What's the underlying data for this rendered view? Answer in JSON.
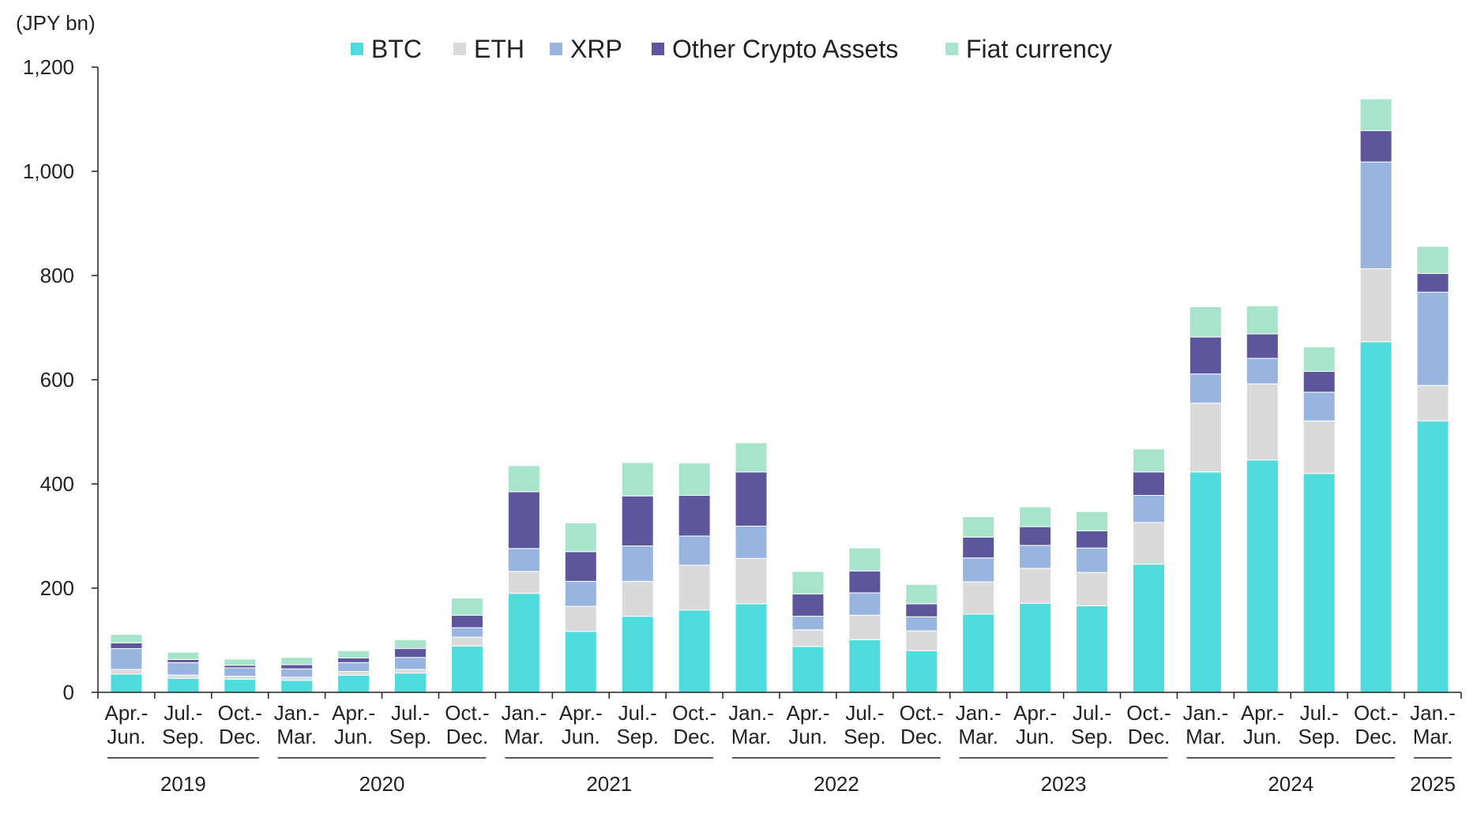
{
  "chart_data": {
    "type": "bar",
    "stacked": true,
    "unit_label": "(JPY bn)",
    "ylim": [
      0,
      1200
    ],
    "yticks": [
      0,
      200,
      400,
      600,
      800,
      1000,
      1200
    ],
    "ytick_labels": [
      "0",
      "200",
      "400",
      "600",
      "800",
      "1,000",
      "1,200"
    ],
    "legend_position": "top-center",
    "categories": [
      {
        "line1": "Apr.-",
        "line2": "Jun."
      },
      {
        "line1": "Jul.-",
        "line2": "Sep."
      },
      {
        "line1": "Oct.-",
        "line2": "Dec."
      },
      {
        "line1": "Jan.-",
        "line2": "Mar."
      },
      {
        "line1": "Apr.-",
        "line2": "Jun."
      },
      {
        "line1": "Jul.-",
        "line2": "Sep."
      },
      {
        "line1": "Oct.-",
        "line2": "Dec."
      },
      {
        "line1": "Jan.-",
        "line2": "Mar."
      },
      {
        "line1": "Apr.-",
        "line2": "Jun."
      },
      {
        "line1": "Jul.-",
        "line2": "Sep."
      },
      {
        "line1": "Oct.-",
        "line2": "Dec."
      },
      {
        "line1": "Jan.-",
        "line2": "Mar."
      },
      {
        "line1": "Apr.-",
        "line2": "Jun."
      },
      {
        "line1": "Jul.-",
        "line2": "Sep."
      },
      {
        "line1": "Oct.-",
        "line2": "Dec."
      },
      {
        "line1": "Jan.-",
        "line2": "Mar."
      },
      {
        "line1": "Apr.-",
        "line2": "Jun."
      },
      {
        "line1": "Jul.-",
        "line2": "Sep."
      },
      {
        "line1": "Oct.-",
        "line2": "Dec."
      },
      {
        "line1": "Jan.-",
        "line2": "Mar."
      },
      {
        "line1": "Apr.-",
        "line2": "Jun."
      },
      {
        "line1": "Jul.-",
        "line2": "Sep."
      },
      {
        "line1": "Oct.-",
        "line2": "Dec."
      },
      {
        "line1": "Jan.-",
        "line2": "Mar."
      }
    ],
    "year_groups": [
      {
        "label": "2019",
        "start": 0,
        "end": 2
      },
      {
        "label": "2020",
        "start": 3,
        "end": 6
      },
      {
        "label": "2021",
        "start": 7,
        "end": 10
      },
      {
        "label": "2022",
        "start": 11,
        "end": 14
      },
      {
        "label": "2023",
        "start": 15,
        "end": 18
      },
      {
        "label": "2024",
        "start": 19,
        "end": 22
      },
      {
        "label": "2025",
        "start": 23,
        "end": 23
      }
    ],
    "series": [
      {
        "name": "BTC",
        "color": "#50DBDC",
        "values": [
          35,
          27,
          25,
          23,
          33,
          37,
          89,
          190,
          117,
          146,
          158,
          170,
          88,
          101,
          80,
          150,
          171,
          166,
          246,
          423,
          446,
          420,
          673,
          521
        ]
      },
      {
        "name": "ETH",
        "color": "#DADADA",
        "values": [
          9,
          6,
          6,
          6,
          7,
          7,
          17,
          42,
          48,
          67,
          86,
          87,
          32,
          47,
          38,
          62,
          67,
          64,
          80,
          132,
          146,
          101,
          140,
          68
        ]
      },
      {
        "name": "XRP",
        "color": "#98B5DF",
        "values": [
          40,
          24,
          16,
          16,
          17,
          23,
          18,
          44,
          48,
          68,
          56,
          62,
          26,
          43,
          27,
          46,
          44,
          47,
          52,
          56,
          49,
          55,
          205,
          179
        ]
      },
      {
        "name": "Other Crypto Assets",
        "color": "#5D569D",
        "values": [
          11,
          6,
          5,
          8,
          9,
          17,
          24,
          109,
          57,
          96,
          78,
          104,
          43,
          42,
          25,
          40,
          36,
          33,
          45,
          71,
          47,
          40,
          60,
          36
        ]
      },
      {
        "name": "Fiat currency",
        "color": "#A7E4CB",
        "values": [
          16,
          14,
          12,
          14,
          14,
          17,
          33,
          50,
          55,
          64,
          62,
          56,
          43,
          44,
          37,
          39,
          38,
          37,
          44,
          58,
          54,
          47,
          61,
          52
        ]
      }
    ]
  }
}
